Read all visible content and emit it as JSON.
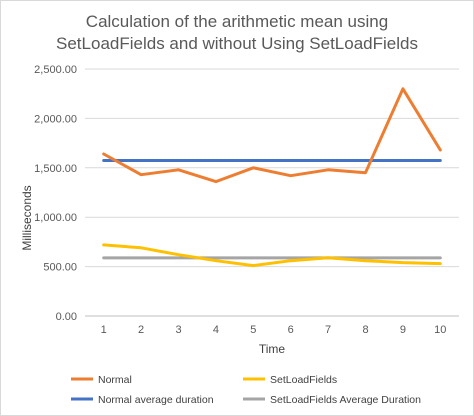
{
  "chart_data": {
    "type": "line",
    "title_lines": [
      "Calculation of the arithmetic mean using",
      "SetLoadFields and without Using SetLoadFields"
    ],
    "xlabel": "Time",
    "ylabel": "Milliseconds",
    "categories": [
      "1",
      "2",
      "3",
      "4",
      "5",
      "6",
      "7",
      "8",
      "9",
      "10"
    ],
    "ylim": [
      0,
      2500
    ],
    "yticks": [
      "0.00",
      "500.00",
      "1,000.00",
      "1,500.00",
      "2,000.00",
      "2,500.00"
    ],
    "grid": true,
    "legend_position": "bottom",
    "series": [
      {
        "name": "Normal",
        "color": "#ed7d31",
        "values": [
          1640,
          1430,
          1480,
          1360,
          1500,
          1420,
          1480,
          1450,
          2300,
          1680
        ]
      },
      {
        "name": "SetLoadFields",
        "color": "#ffc000",
        "values": [
          720,
          690,
          620,
          560,
          510,
          560,
          590,
          560,
          540,
          530
        ]
      },
      {
        "name": "Normal average duration",
        "color": "#4472c4",
        "values": [
          1574,
          1574,
          1574,
          1574,
          1574,
          1574,
          1574,
          1574,
          1574,
          1574
        ]
      },
      {
        "name": "SetLoadFields Average Duration",
        "color": "#a5a5a5",
        "values": [
          588,
          588,
          588,
          588,
          588,
          588,
          588,
          588,
          588,
          588
        ]
      }
    ]
  }
}
